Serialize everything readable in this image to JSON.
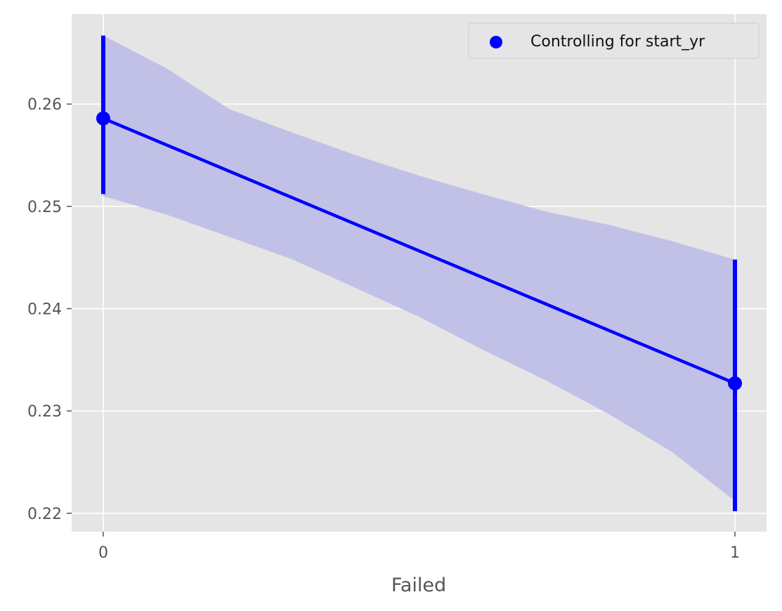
{
  "chart_data": {
    "type": "line",
    "title": "",
    "xlabel": "Failed",
    "ylabel": "",
    "x_ticks": [
      0,
      1
    ],
    "x_tick_labels": [
      "0",
      "1"
    ],
    "xlim": [
      -0.05,
      1.05
    ],
    "y_ticks": [
      0.22,
      0.23,
      0.24,
      0.25,
      0.26
    ],
    "y_tick_labels": [
      "0.22",
      "0.23",
      "0.24",
      "0.25",
      "0.26"
    ],
    "ylim": [
      0.2182,
      0.2688
    ],
    "grid": true,
    "legend_position": "top-right",
    "series": [
      {
        "name": "Controlling for start_yr",
        "color": "#0000ff",
        "points": [
          {
            "x": 0,
            "y": 0.2586,
            "ci": [
              0.2512,
              0.2667
            ]
          },
          {
            "x": 1,
            "y": 0.2327,
            "ci": [
              0.2202,
              0.2448
            ]
          }
        ],
        "band_color": "#c1c1e8",
        "band": [
          {
            "x": 0.0,
            "lower": 0.251,
            "upper": 0.2667
          },
          {
            "x": 0.1,
            "lower": 0.2492,
            "upper": 0.2635
          },
          {
            "x": 0.2,
            "lower": 0.247,
            "upper": 0.2595
          },
          {
            "x": 0.3,
            "lower": 0.2448,
            "upper": 0.2572
          },
          {
            "x": 0.4,
            "lower": 0.242,
            "upper": 0.255
          },
          {
            "x": 0.5,
            "lower": 0.2392,
            "upper": 0.253
          },
          {
            "x": 0.6,
            "lower": 0.236,
            "upper": 0.2512
          },
          {
            "x": 0.7,
            "lower": 0.233,
            "upper": 0.2495
          },
          {
            "x": 0.8,
            "lower": 0.2297,
            "upper": 0.2482
          },
          {
            "x": 0.9,
            "lower": 0.226,
            "upper": 0.2466
          },
          {
            "x": 1.0,
            "lower": 0.2212,
            "upper": 0.2448
          }
        ]
      }
    ]
  }
}
